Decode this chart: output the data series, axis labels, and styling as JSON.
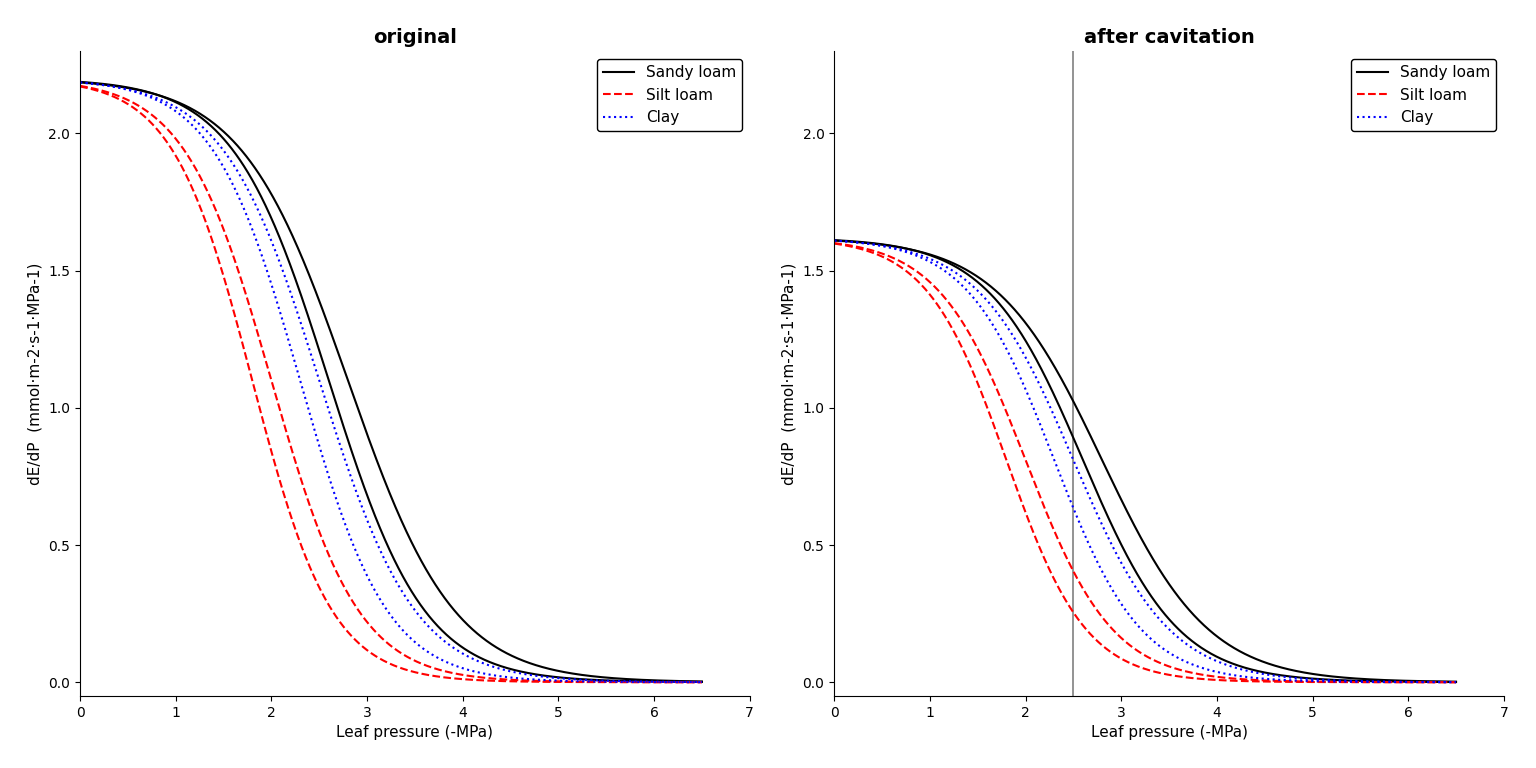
{
  "title_left": "original",
  "title_right": "after cavitation",
  "xlabel": "Leaf pressure (-MPa)",
  "ylabel": "dE/dP  (mmol·m-2·s-1·MPa-1)",
  "xlim": [
    0,
    7
  ],
  "ylim": [
    -0.05,
    2.3
  ],
  "xticks": [
    0,
    1,
    2,
    3,
    4,
    5,
    6,
    7
  ],
  "yticks": [
    0.0,
    0.5,
    1.0,
    1.5,
    2.0
  ],
  "vline_x": 2.5,
  "legend_entries": [
    "Sandy loam",
    "Silt loam",
    "Clay"
  ],
  "legend_colors": [
    "black",
    "red",
    "blue"
  ],
  "legend_styles": [
    "solid",
    "dashed",
    "dotted"
  ],
  "soil_types_orig": [
    {
      "name": "Sandy loam",
      "color": "black",
      "linestyle": "solid",
      "curves": [
        {
          "E0": 2.2,
          "k": 1.8,
          "p0": 2.8
        },
        {
          "E0": 2.2,
          "k": 2.0,
          "p0": 2.6
        }
      ]
    },
    {
      "name": "Silt loam",
      "color": "red",
      "linestyle": "dashed",
      "curves": [
        {
          "E0": 2.2,
          "k": 2.2,
          "p0": 2.0
        },
        {
          "E0": 2.2,
          "k": 2.4,
          "p0": 1.8
        }
      ]
    },
    {
      "name": "Clay",
      "color": "blue",
      "linestyle": "dotted",
      "curves": [
        {
          "E0": 2.2,
          "k": 2.0,
          "p0": 2.5
        },
        {
          "E0": 2.2,
          "k": 2.2,
          "p0": 2.3
        }
      ]
    }
  ],
  "soil_types_cav": [
    {
      "name": "Sandy loam",
      "color": "black",
      "linestyle": "solid",
      "curves": [
        {
          "E0": 1.62,
          "k": 1.8,
          "p0": 2.8
        },
        {
          "E0": 1.62,
          "k": 2.0,
          "p0": 2.6
        }
      ]
    },
    {
      "name": "Silt loam",
      "color": "red",
      "linestyle": "dashed",
      "curves": [
        {
          "E0": 1.62,
          "k": 2.2,
          "p0": 2.0
        },
        {
          "E0": 1.62,
          "k": 2.4,
          "p0": 1.8
        }
      ]
    },
    {
      "name": "Clay",
      "color": "blue",
      "linestyle": "dotted",
      "curves": [
        {
          "E0": 1.62,
          "k": 2.0,
          "p0": 2.5
        },
        {
          "E0": 1.62,
          "k": 2.2,
          "p0": 2.3
        }
      ]
    }
  ],
  "background_color": "white",
  "title_fontsize": 14,
  "label_fontsize": 11,
  "tick_fontsize": 10,
  "linewidth": 1.5
}
